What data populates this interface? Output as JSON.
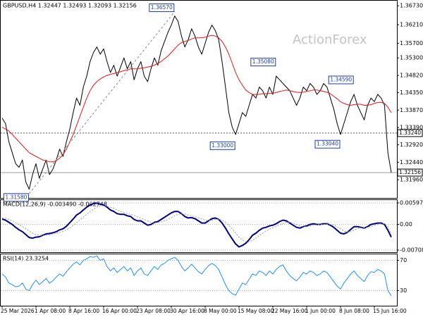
{
  "chart_data": [
    {
      "type": "line",
      "title": "GBPUSD,H4 1.32447 1.32493 1.32093 1.32156",
      "watermark": "ActionForex",
      "categories": [
        "25 Mar 2026",
        null,
        null,
        null,
        null,
        null,
        null,
        null,
        null,
        null,
        "1 Apr 08:00",
        null,
        null,
        null,
        null,
        null,
        null,
        null,
        null,
        null,
        "8 Apr 16:00",
        null,
        null,
        null,
        null,
        null,
        null,
        null,
        null,
        null,
        "16 Apr 00:00",
        null,
        null,
        null,
        null,
        null,
        null,
        null,
        null,
        null,
        "23 Apr 08:00",
        null,
        null,
        null,
        null,
        null,
        null,
        null,
        null,
        null,
        "30 Apr 16:00",
        null,
        null,
        null,
        null,
        null,
        null,
        null,
        null,
        null,
        "8 May 00:00",
        null,
        null,
        null,
        null,
        null,
        null,
        null,
        null,
        null,
        "15 May 08:00",
        null,
        null,
        null,
        null,
        null,
        null,
        null,
        null,
        null,
        "22 May 16:00",
        null,
        null,
        null,
        null,
        null,
        null,
        null,
        null,
        null,
        "1 Jun 00:00",
        null,
        null,
        null,
        null,
        null,
        null,
        null,
        null,
        null,
        "8 Jun 08:00",
        null,
        null,
        null,
        null,
        null,
        null,
        null,
        null,
        null,
        "15 Jun 16:00",
        null,
        null,
        null,
        null,
        null
      ],
      "series": [
        {
          "name": "GBPUSD",
          "color": "#000000",
          "width": 1,
          "values": [
            1.3365,
            1.335,
            1.33,
            1.327,
            1.324,
            1.323,
            1.325,
            1.319,
            1.317,
            1.321,
            1.324,
            1.32,
            1.3225,
            1.325,
            1.321,
            1.3225,
            1.325,
            1.328,
            1.326,
            1.33,
            1.3335,
            1.338,
            1.342,
            1.34,
            1.345,
            1.348,
            1.352,
            1.3545,
            1.356,
            1.354,
            1.3555,
            1.352,
            1.349,
            1.351,
            1.348,
            1.3505,
            1.353,
            1.35,
            1.352,
            1.347,
            1.35,
            1.352,
            1.348,
            1.3465,
            1.35,
            1.353,
            1.351,
            1.355,
            1.3575,
            1.36,
            1.362,
            1.3645,
            1.363,
            1.359,
            1.356,
            1.358,
            1.361,
            1.359,
            1.356,
            1.354,
            1.357,
            1.36,
            1.362,
            1.3605,
            1.358,
            1.352,
            1.345,
            1.338,
            1.334,
            1.332,
            1.335,
            1.338,
            1.337,
            1.34,
            1.343,
            1.342,
            1.345,
            1.344,
            1.342,
            1.345,
            1.343,
            1.348,
            1.347,
            1.346,
            1.345,
            1.344,
            1.342,
            1.34,
            1.342,
            1.345,
            1.344,
            1.346,
            1.345,
            1.343,
            1.344,
            1.346,
            1.345,
            1.342,
            1.339,
            1.335,
            1.332,
            1.335,
            1.338,
            1.341,
            1.343,
            1.34,
            1.338,
            1.336,
            1.34,
            1.342,
            1.341,
            1.343,
            1.342,
            1.34,
            1.327,
            1.3216
          ]
        },
        {
          "name": "MA",
          "color": "#e81818",
          "width": 1,
          "values": [
            1.334,
            1.3335,
            1.333,
            1.332,
            1.331,
            1.33,
            1.329,
            1.328,
            1.327,
            1.3265,
            1.326,
            1.3255,
            1.325,
            1.3248,
            1.3245,
            1.3245,
            1.3248,
            1.3255,
            1.3265,
            1.328,
            1.33,
            1.332,
            1.3345,
            1.337,
            1.3395,
            1.342,
            1.344,
            1.3455,
            1.3465,
            1.3472,
            1.3478,
            1.3482,
            1.3485,
            1.3487,
            1.349,
            1.3492,
            1.3495,
            1.3497,
            1.35,
            1.35,
            1.35,
            1.3502,
            1.3503,
            1.3505,
            1.3507,
            1.351,
            1.3515,
            1.352,
            1.3528,
            1.3535,
            1.3545,
            1.3555,
            1.3565,
            1.3572,
            1.3575,
            1.3578,
            1.3582,
            1.3585,
            1.3585,
            1.3585,
            1.3587,
            1.359,
            1.3592,
            1.359,
            1.3585,
            1.3575,
            1.356,
            1.354,
            1.3515,
            1.349,
            1.347,
            1.3455,
            1.3442,
            1.3435,
            1.343,
            1.343,
            1.343,
            1.3432,
            1.3432,
            1.3433,
            1.3433,
            1.3435,
            1.3438,
            1.344,
            1.3442,
            1.344,
            1.3438,
            1.3436,
            1.3435,
            1.3436,
            1.3438,
            1.344,
            1.3442,
            1.3442,
            1.344,
            1.3438,
            1.3436,
            1.3432,
            1.3425,
            1.3418,
            1.341,
            1.3405,
            1.3402,
            1.34,
            1.3402,
            1.3403,
            1.3403,
            1.34,
            1.34,
            1.3402,
            1.3405,
            1.3408,
            1.3408,
            1.3405,
            1.3395,
            1.338
          ]
        }
      ],
      "ylim": [
        1.3148,
        1.3683
      ],
      "yticks": [
        {
          "value": 1.3673,
          "label": "1.36730"
        },
        {
          "value": 1.3621,
          "label": "1.36210"
        },
        {
          "value": 1.357,
          "label": "1.35700"
        },
        {
          "value": 1.353,
          "label": "1.35300"
        },
        {
          "value": 1.3482,
          "label": "1.34820"
        },
        {
          "value": 1.3435,
          "label": "1.34350"
        },
        {
          "value": 1.3387,
          "label": "1.33870"
        },
        {
          "value": 1.3339,
          "label": "1.33390"
        },
        {
          "value": 1.3292,
          "label": "1.32920"
        },
        {
          "value": 1.3244,
          "label": "1.32440"
        },
        {
          "value": 1.3196,
          "label": "1.31960"
        }
      ],
      "grid": false,
      "levels": [
        {
          "value": 1.3324,
          "label": "1.33240"
        },
        {
          "value": 1.32156,
          "label": "1.32156"
        }
      ],
      "annotations": [
        {
          "index": 51,
          "value": 1.3657,
          "label": "1.36570",
          "kind": "high"
        },
        {
          "index": 81,
          "value": 1.3508,
          "label": "1.35080",
          "kind": "high"
        },
        {
          "index": 104,
          "value": 1.3459,
          "label": "1.34590",
          "kind": "high"
        },
        {
          "index": 69,
          "value": 1.33,
          "label": "1.33000",
          "kind": "low"
        },
        {
          "index": 100,
          "value": 1.3304,
          "label": "1.33040",
          "kind": "low"
        },
        {
          "index": 8,
          "value": 1.3158,
          "label": "1.31580",
          "kind": "low"
        }
      ]
    },
    {
      "type": "line",
      "title": "MACD(12,26,9) -0.003490 -0.002748",
      "series": [
        {
          "name": "MACD",
          "color": "#000080",
          "width": 2,
          "values": [
            0.0015,
            0.0012,
            0.0006,
            0.0,
            -0.0008,
            -0.0015,
            -0.002,
            -0.0028,
            -0.0036,
            -0.0038,
            -0.0035,
            -0.0034,
            -0.003,
            -0.0026,
            -0.0025,
            -0.0023,
            -0.002,
            -0.0015,
            -0.0012,
            -0.0005,
            0.0005,
            0.0015,
            0.0026,
            0.0032,
            0.004,
            0.0048,
            0.0054,
            0.0058,
            0.0059,
            0.0056,
            0.0054,
            0.0048,
            0.004,
            0.0036,
            0.003,
            0.0028,
            0.0028,
            0.0024,
            0.0022,
            0.0014,
            0.001,
            0.001,
            0.0004,
            -0.0002,
            0.0,
            0.0006,
            0.0008,
            0.0014,
            0.002,
            0.0026,
            0.0032,
            0.0036,
            0.0036,
            0.003,
            0.0022,
            0.0018,
            0.0019,
            0.0016,
            0.001,
            0.0004,
            0.0004,
            0.001,
            0.0016,
            0.0018,
            0.0014,
            0.0004,
            -0.001,
            -0.0026,
            -0.004,
            -0.0054,
            -0.0062,
            -0.0058,
            -0.0052,
            -0.0042,
            -0.003,
            -0.0024,
            -0.0016,
            -0.001,
            -0.0008,
            -0.0004,
            -0.0002,
            0.0002,
            0.0008,
            0.0012,
            0.001,
            0.0004,
            -0.0002,
            -0.0008,
            -0.001,
            -0.0006,
            -0.0004,
            0.0,
            0.0002,
            0.0,
            0.0,
            0.0002,
            0.0002,
            -0.0002,
            -0.0008,
            -0.0016,
            -0.0024,
            -0.0026,
            -0.0022,
            -0.0014,
            -0.0006,
            -0.0006,
            -0.0008,
            -0.001,
            -0.0006,
            0.0,
            0.0002,
            0.0004,
            0.0004,
            0.0,
            -0.0016,
            -0.00349
          ]
        },
        {
          "name": "Signal",
          "color": "#9a9a9a",
          "width": 1,
          "dash": true,
          "values": [
            0.0018,
            0.0017,
            0.0014,
            0.001,
            0.0005,
            0.0,
            -0.0006,
            -0.0012,
            -0.0018,
            -0.0024,
            -0.0028,
            -0.003,
            -0.0031,
            -0.003,
            -0.0029,
            -0.0027,
            -0.0025,
            -0.0022,
            -0.0019,
            -0.0015,
            -0.0009,
            -0.0003,
            0.0005,
            0.0013,
            0.002,
            0.0028,
            0.0035,
            0.0042,
            0.0048,
            0.0051,
            0.0052,
            0.0051,
            0.0048,
            0.0045,
            0.004,
            0.0036,
            0.0033,
            0.003,
            0.0028,
            0.0025,
            0.0021,
            0.0018,
            0.0014,
            0.001,
            0.0006,
            0.0005,
            0.0005,
            0.0007,
            0.001,
            0.0014,
            0.0019,
            0.0024,
            0.0028,
            0.003,
            0.0029,
            0.0026,
            0.0024,
            0.0022,
            0.0019,
            0.0015,
            0.0012,
            0.0011,
            0.0012,
            0.0014,
            0.0014,
            0.0012,
            0.0006,
            -0.0002,
            -0.0012,
            -0.0024,
            -0.0035,
            -0.0043,
            -0.0048,
            -0.0048,
            -0.0044,
            -0.0038,
            -0.0031,
            -0.0024,
            -0.0018,
            -0.0013,
            -0.0009,
            -0.0005,
            -0.0001,
            0.0003,
            0.0006,
            0.0006,
            0.0004,
            0.0,
            -0.0004,
            -0.0006,
            -0.0006,
            -0.0004,
            -0.0002,
            -0.0001,
            0.0,
            0.0,
            0.0001,
            0.0,
            -0.0002,
            -0.0006,
            -0.0012,
            -0.0018,
            -0.0021,
            -0.002,
            -0.0016,
            -0.0012,
            -0.001,
            -0.0009,
            -0.0008,
            -0.0006,
            -0.0003,
            0.0,
            0.0002,
            0.0002,
            -0.0006,
            -0.002748
          ]
        }
      ],
      "ylim": [
        -0.007086,
        0.005973
      ],
      "yticks": [
        -0.007086,
        {
          "value": 0,
          "label": "0.00"
        },
        0.005973
      ],
      "grid": true
    },
    {
      "type": "line",
      "title": "RSI(14) 23.3254",
      "series": [
        {
          "name": "RSI",
          "color": "#1e90ff",
          "width": 1,
          "values": [
            52,
            48,
            40,
            38,
            35,
            36,
            40,
            32,
            30,
            38,
            44,
            38,
            42,
            46,
            40,
            43,
            48,
            52,
            49,
            55,
            60,
            65,
            68,
            64,
            70,
            72,
            75,
            74,
            76,
            70,
            72,
            62,
            56,
            60,
            54,
            58,
            62,
            56,
            60,
            50,
            56,
            60,
            52,
            50,
            56,
            62,
            58,
            64,
            66,
            70,
            72,
            74,
            70,
            62,
            56,
            60,
            65,
            60,
            55,
            52,
            58,
            63,
            66,
            63,
            58,
            48,
            38,
            30,
            26,
            24,
            32,
            40,
            38,
            45,
            52,
            50,
            56,
            54,
            50,
            56,
            52,
            58,
            62,
            64,
            56,
            50,
            46,
            43,
            48,
            54,
            52,
            56,
            54,
            50,
            52,
            56,
            54,
            48,
            42,
            36,
            32,
            40,
            46,
            52,
            56,
            50,
            46,
            42,
            50,
            55,
            54,
            58,
            56,
            52,
            30,
            23.3254
          ]
        }
      ],
      "ylim": [
        11,
        78
      ],
      "yticks": [
        70,
        30
      ],
      "grid": true
    }
  ]
}
